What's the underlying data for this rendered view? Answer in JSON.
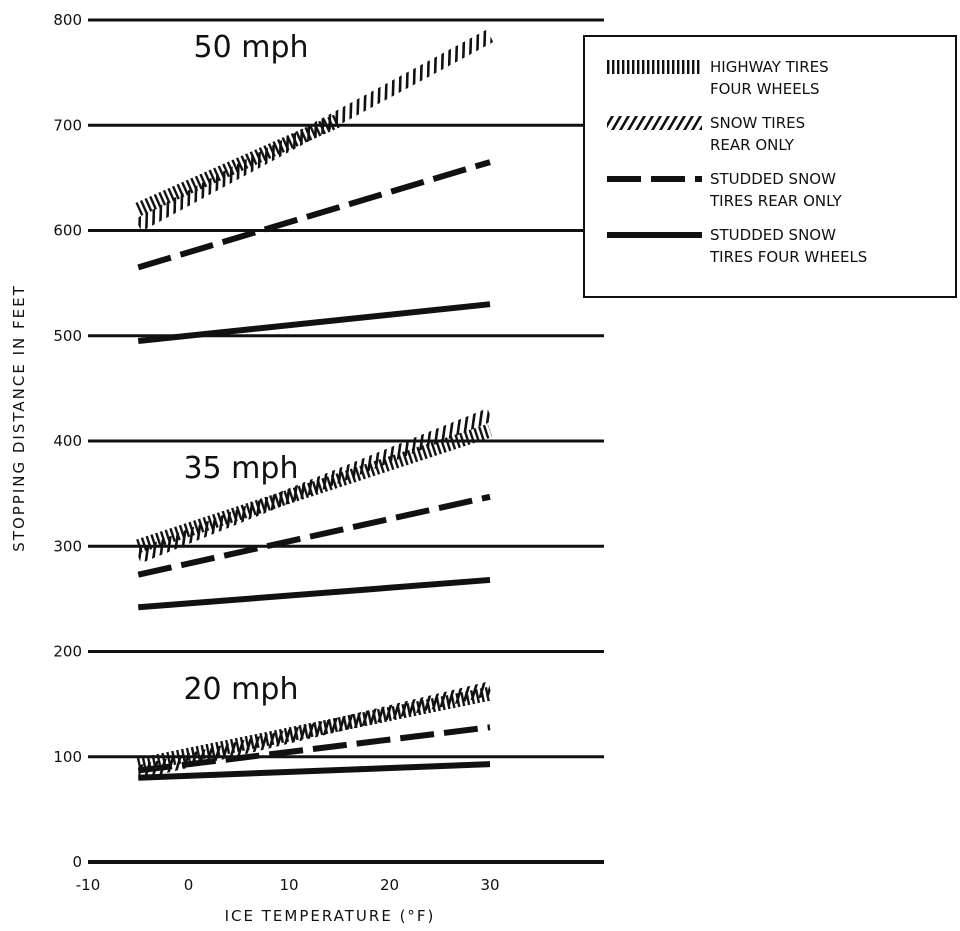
{
  "chart_data": {
    "type": "line",
    "xlabel": "ICE TEMPERATURE (°F)",
    "ylabel": "STOPPING DISTANCE IN FEET",
    "xlim": [
      -10,
      30
    ],
    "ylim": [
      0,
      800
    ],
    "x_ticks": [
      "-10",
      "0",
      "10",
      "20",
      "30"
    ],
    "y_ticks": [
      "0",
      "100",
      "200",
      "300",
      "400",
      "500",
      "600",
      "700",
      "800"
    ],
    "grid": "horizontal",
    "legend_position": "top-right",
    "legend": [
      {
        "key": "highway",
        "line1": "HIGHWAY TIRES",
        "line2": "FOUR WHEELS",
        "style": "dotted"
      },
      {
        "key": "snow",
        "line1": "SNOW TIRES",
        "line2": "REAR ONLY",
        "style": "hatched"
      },
      {
        "key": "studded_rear",
        "line1": "STUDDED SNOW",
        "line2": "TIRES REAR ONLY",
        "style": "dashed"
      },
      {
        "key": "studded_four",
        "line1": "STUDDED SNOW",
        "line2": "TIRES FOUR WHEELS",
        "style": "solid"
      }
    ],
    "groups": [
      {
        "label": "50 mph",
        "label_at": [
          0.5,
          765
        ],
        "series": [
          {
            "key": "highway",
            "x": [
              -5,
              15
            ],
            "y": [
              620,
              705
            ]
          },
          {
            "key": "snow",
            "x": [
              -5,
              30
            ],
            "y": [
              605,
              785
            ]
          },
          {
            "key": "studded_rear",
            "x": [
              -5,
              30
            ],
            "y": [
              565,
              665
            ]
          },
          {
            "key": "studded_four",
            "x": [
              -5,
              30
            ],
            "y": [
              495,
              530
            ]
          }
        ]
      },
      {
        "label": "35 mph",
        "label_at": [
          -0.5,
          365
        ],
        "series": [
          {
            "key": "highway",
            "x": [
              -5,
              30
            ],
            "y": [
              300,
              410
            ]
          },
          {
            "key": "snow",
            "x": [
              -5,
              30
            ],
            "y": [
              290,
              425
            ]
          },
          {
            "key": "studded_rear",
            "x": [
              -5,
              30
            ],
            "y": [
              273,
              347
            ]
          },
          {
            "key": "studded_four",
            "x": [
              -5,
              30
            ],
            "y": [
              242,
              268
            ]
          }
        ]
      },
      {
        "label": "20 mph",
        "label_at": [
          -0.5,
          155
        ],
        "series": [
          {
            "key": "highway",
            "x": [
              -5,
              30
            ],
            "y": [
              92,
              160
            ]
          },
          {
            "key": "snow",
            "x": [
              -5,
              30
            ],
            "y": [
              85,
              165
            ]
          },
          {
            "key": "studded_rear",
            "x": [
              -5,
              30
            ],
            "y": [
              87,
              128
            ]
          },
          {
            "key": "studded_four",
            "x": [
              -5,
              30
            ],
            "y": [
              80,
              93
            ]
          }
        ]
      }
    ]
  }
}
